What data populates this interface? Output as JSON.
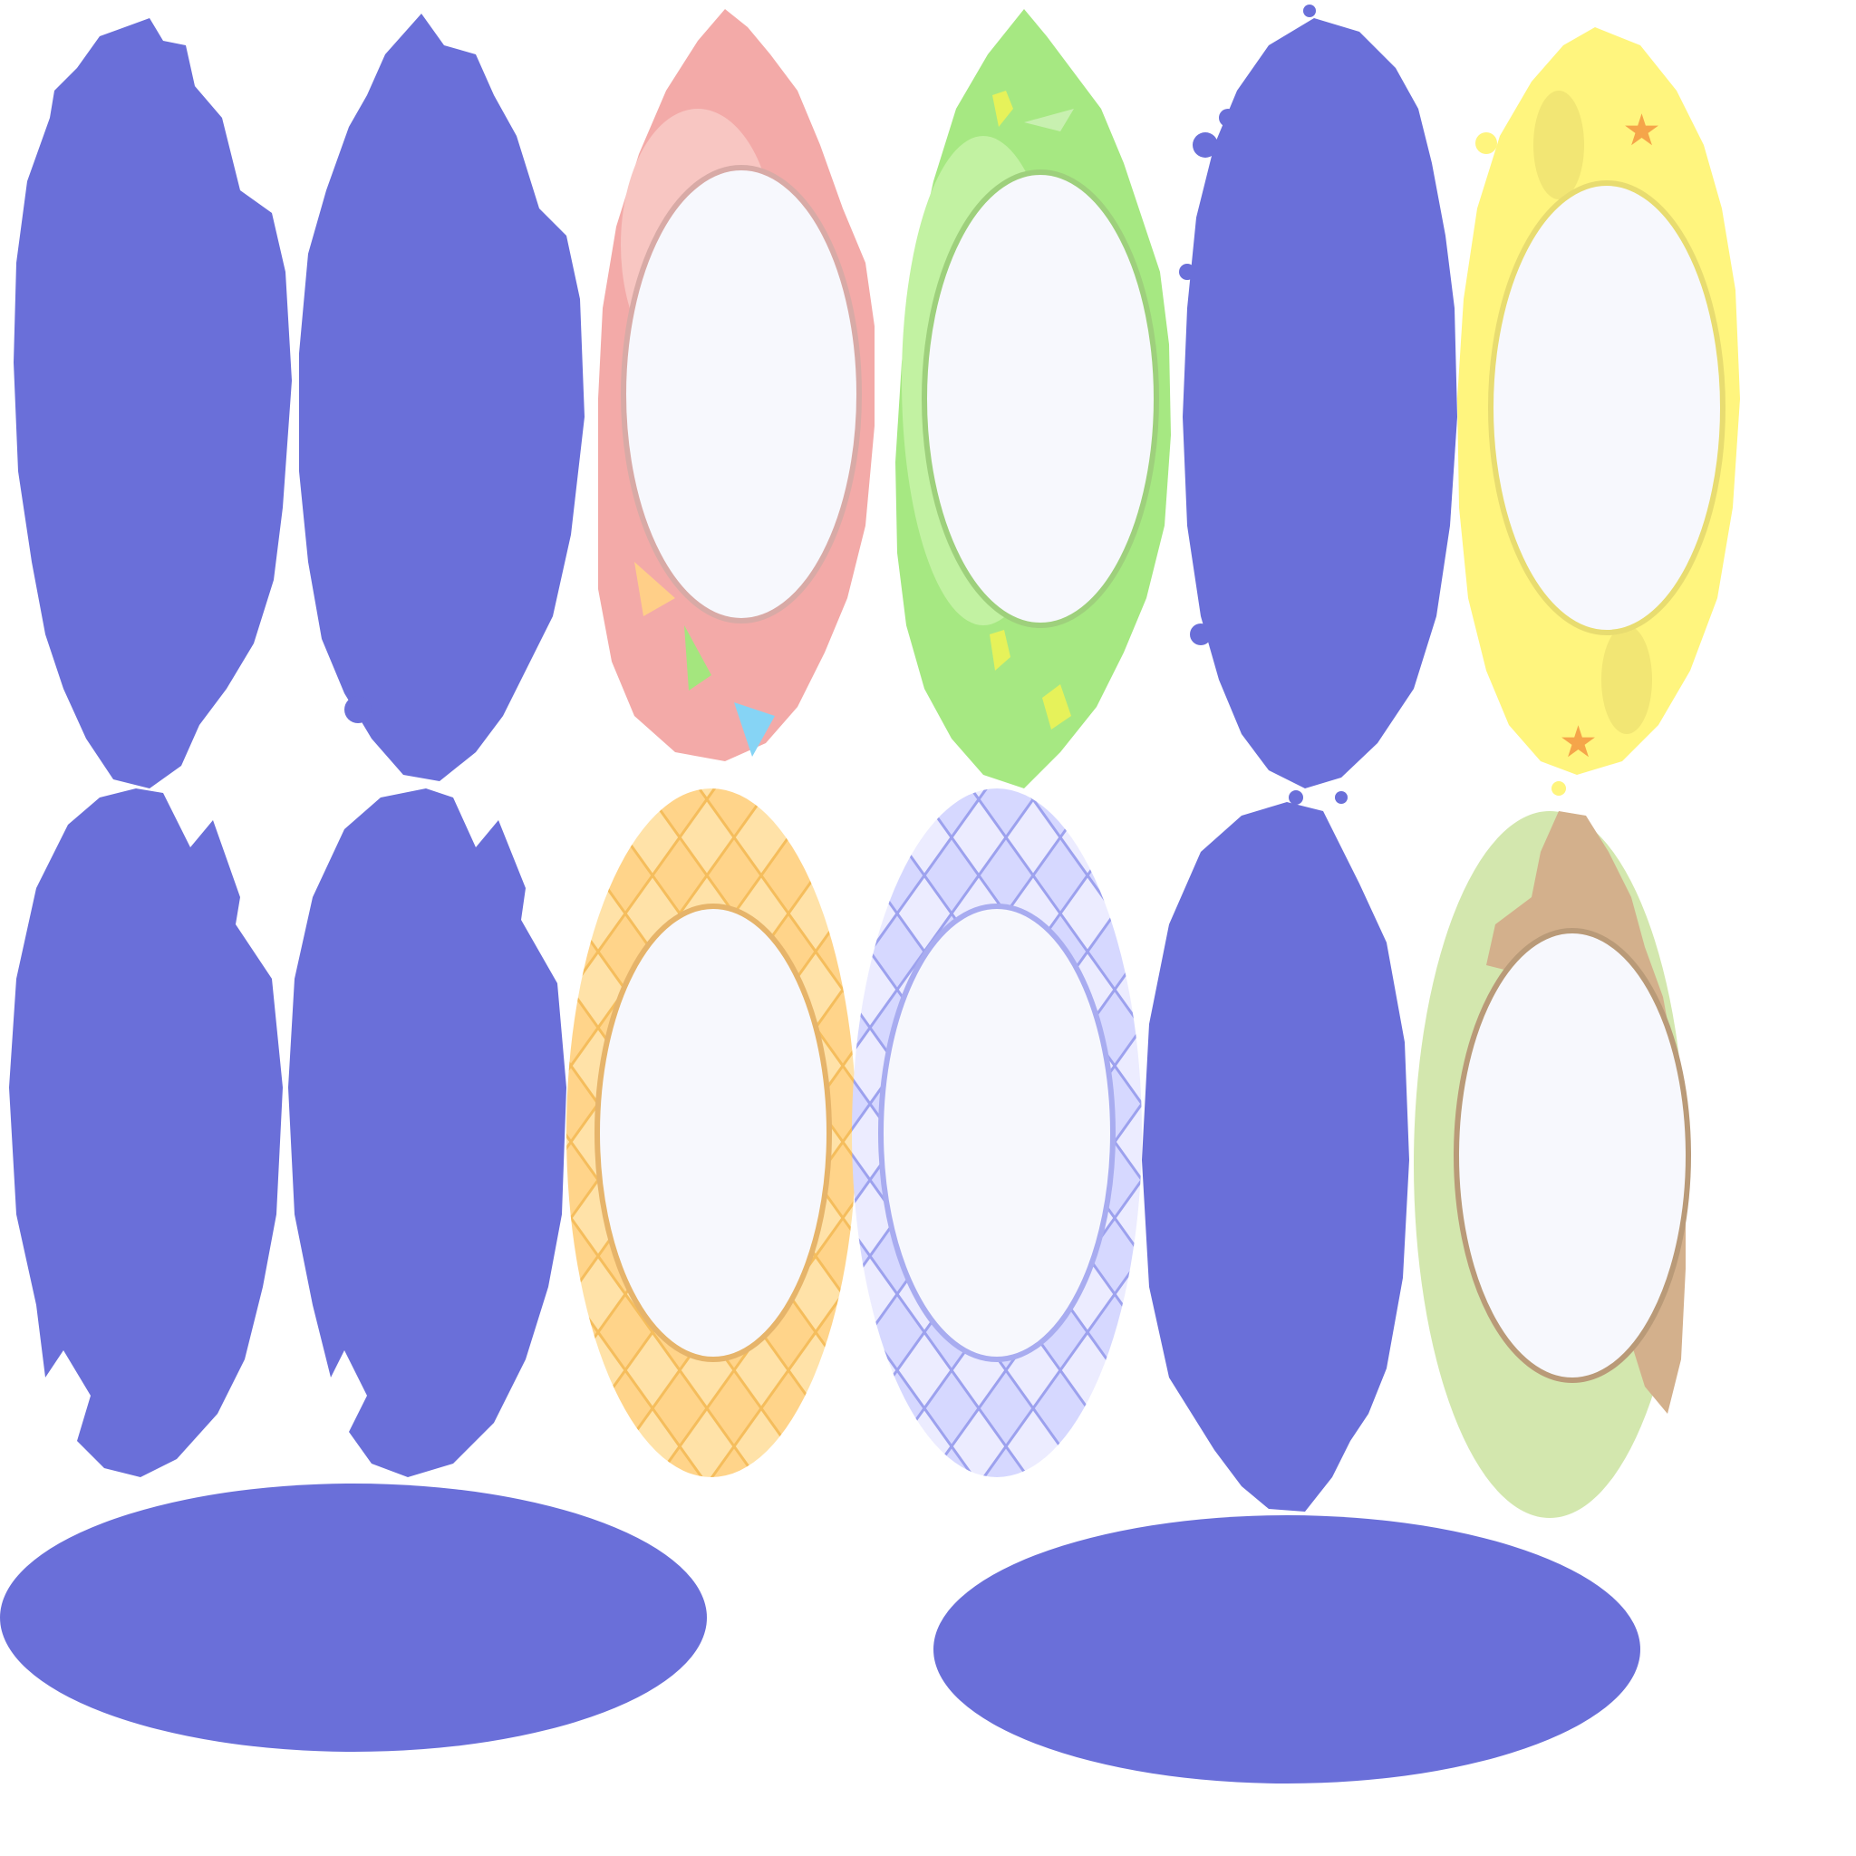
{
  "sprite_sheet": {
    "background": "#ffffff",
    "colors": {
      "mask": "#6a6fd9",
      "inner": "#f7f8fd",
      "pink": "#f3aaa8",
      "pink_light": "#f8c6c2",
      "green": "#a6e882",
      "green_light": "#c2f2a2",
      "yellow": "#fff57e",
      "yellow_light": "#fffbb0",
      "orange_diamond": "#ffd896",
      "orange_line": "#f5c063",
      "lavender_diamond": "#e2e2ff",
      "lavender_line": "#a6aaf0",
      "earth_green": "#d3e7ae",
      "earth_brown": "#d3b08c"
    },
    "frames": [
      {
        "name": "frame-mask-spiky",
        "icon": "spiky-oval-mask-icon"
      },
      {
        "name": "frame-mask-spiky-alt",
        "icon": "spiky-oval-mask-icon"
      },
      {
        "name": "frame-pink-bunting",
        "icon": "pink-bunting-frame-icon"
      },
      {
        "name": "frame-green-grass",
        "icon": "green-grass-frame-icon"
      },
      {
        "name": "frame-mask-splash",
        "icon": "splash-oval-mask-icon"
      },
      {
        "name": "frame-yellow-splash",
        "icon": "yellow-star-frame-icon"
      },
      {
        "name": "frame-mask-notched",
        "icon": "notched-oval-mask-icon"
      },
      {
        "name": "frame-mask-notched-alt",
        "icon": "notched-oval-mask-icon"
      },
      {
        "name": "frame-orange-diamond",
        "icon": "orange-diamond-frame-icon"
      },
      {
        "name": "frame-lavender-diamond",
        "icon": "lavender-diamond-frame-icon"
      },
      {
        "name": "frame-mask-smooth",
        "icon": "smooth-oval-mask-icon"
      },
      {
        "name": "frame-earth-rock",
        "icon": "earth-rock-frame-icon"
      },
      {
        "name": "shadow-left",
        "icon": "ellipse-shadow-icon"
      },
      {
        "name": "shadow-right",
        "icon": "ellipse-shadow-icon"
      }
    ]
  }
}
